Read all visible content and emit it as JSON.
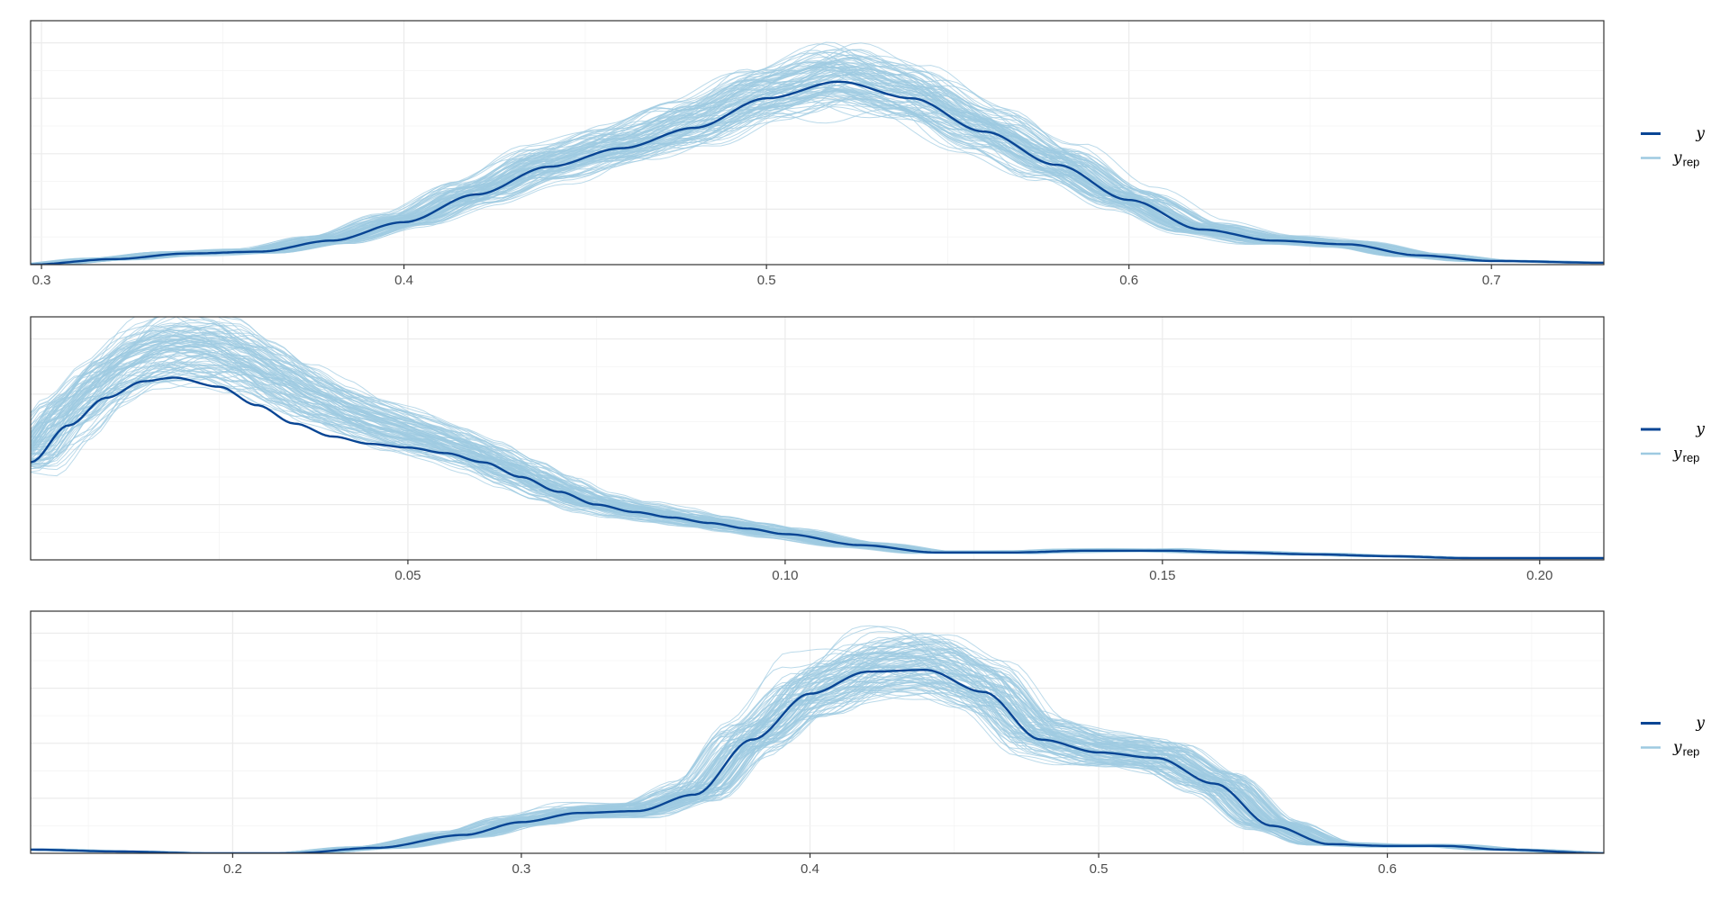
{
  "colors": {
    "y": "#084594",
    "yrep": "#9ecae1",
    "grid_major": "#ebebeb",
    "grid_minor": "#f4f4f4",
    "panel_border": "#333333",
    "background": "#ffffff"
  },
  "legend": {
    "entries": [
      {
        "key": "y",
        "label": "y",
        "subscript": ""
      },
      {
        "key": "yrep",
        "label": "y",
        "subscript": "rep"
      }
    ],
    "placement": "right"
  },
  "chart_data": [
    {
      "type": "line",
      "title": "",
      "xlabel": "",
      "ylabel": "",
      "xlim": [
        0.297,
        0.731
      ],
      "ylim": [
        0,
        1.32
      ],
      "x_ticks": [
        0.3,
        0.4,
        0.5,
        0.6,
        0.7
      ],
      "x_tick_labels": [
        "0.3",
        "0.4",
        "0.5",
        "0.6",
        "0.7"
      ],
      "grid": true,
      "y_axis_labels_shown": false,
      "legend": "right",
      "replicate_draws": 100,
      "series": [
        {
          "name": "y",
          "x": [
            0.297,
            0.32,
            0.34,
            0.36,
            0.38,
            0.4,
            0.42,
            0.44,
            0.46,
            0.48,
            0.5,
            0.52,
            0.54,
            0.56,
            0.58,
            0.6,
            0.62,
            0.64,
            0.66,
            0.68,
            0.7,
            0.731
          ],
          "y": [
            0.0,
            0.03,
            0.06,
            0.07,
            0.13,
            0.23,
            0.38,
            0.53,
            0.63,
            0.74,
            0.9,
            0.99,
            0.9,
            0.72,
            0.54,
            0.35,
            0.19,
            0.13,
            0.11,
            0.05,
            0.02,
            0.01
          ]
        }
      ]
    },
    {
      "type": "line",
      "title": "",
      "xlabel": "",
      "ylabel": "",
      "xlim": [
        0.0,
        0.2085
      ],
      "ylim": [
        0,
        1.32
      ],
      "x_ticks": [
        0.05,
        0.1,
        0.15,
        0.2
      ],
      "x_tick_labels": [
        "0.05",
        "0.10",
        "0.15",
        "0.20"
      ],
      "grid": true,
      "y_axis_labels_shown": false,
      "legend": "right",
      "replicate_draws": 100,
      "series": [
        {
          "name": "y",
          "x": [
            0.0,
            0.005,
            0.01,
            0.015,
            0.019,
            0.025,
            0.03,
            0.035,
            0.04,
            0.045,
            0.05,
            0.055,
            0.06,
            0.065,
            0.07,
            0.075,
            0.08,
            0.085,
            0.09,
            0.095,
            0.1,
            0.11,
            0.12,
            0.13,
            0.14,
            0.15,
            0.16,
            0.17,
            0.18,
            0.19,
            0.2,
            0.2085
          ],
          "y": [
            0.53,
            0.73,
            0.88,
            0.97,
            0.99,
            0.94,
            0.84,
            0.74,
            0.67,
            0.63,
            0.61,
            0.58,
            0.53,
            0.45,
            0.37,
            0.3,
            0.26,
            0.23,
            0.2,
            0.17,
            0.14,
            0.08,
            0.04,
            0.04,
            0.05,
            0.05,
            0.04,
            0.03,
            0.02,
            0.01,
            0.01,
            0.01
          ]
        }
      ]
    },
    {
      "type": "line",
      "title": "",
      "xlabel": "",
      "ylabel": "",
      "xlim": [
        0.13,
        0.675
      ],
      "ylim": [
        0,
        1.32
      ],
      "x_ticks": [
        0.2,
        0.3,
        0.4,
        0.5,
        0.6
      ],
      "x_tick_labels": [
        "0.2",
        "0.3",
        "0.4",
        "0.5",
        "0.6"
      ],
      "grid": true,
      "y_axis_labels_shown": false,
      "legend": "right",
      "replicate_draws": 100,
      "series": [
        {
          "name": "y",
          "x": [
            0.13,
            0.16,
            0.19,
            0.22,
            0.25,
            0.28,
            0.3,
            0.32,
            0.34,
            0.36,
            0.38,
            0.4,
            0.42,
            0.44,
            0.46,
            0.48,
            0.5,
            0.52,
            0.54,
            0.56,
            0.58,
            0.6,
            0.62,
            0.64,
            0.675
          ],
          "y": [
            0.02,
            0.01,
            0.0,
            0.0,
            0.03,
            0.1,
            0.17,
            0.22,
            0.23,
            0.32,
            0.62,
            0.87,
            0.99,
            1.0,
            0.88,
            0.62,
            0.55,
            0.52,
            0.38,
            0.15,
            0.05,
            0.04,
            0.04,
            0.02,
            0.0
          ]
        }
      ]
    }
  ]
}
